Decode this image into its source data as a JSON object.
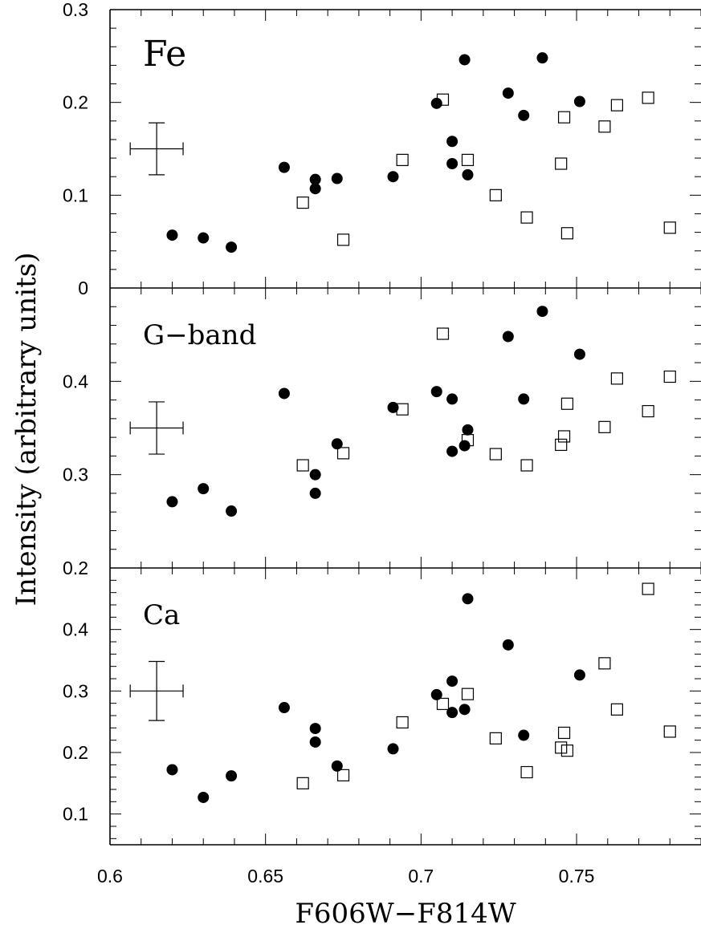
{
  "chart_data": {
    "type": "scatter",
    "xlabel": "F606W−F814W",
    "ylabel": "Intensity (arbitrary units)",
    "xlim": [
      0.6,
      0.79
    ],
    "x_ticks": [
      0.6,
      0.65,
      0.7,
      0.75
    ],
    "x_tick_labels": [
      "0.6",
      "0.65",
      "0.7",
      "0.75"
    ],
    "marker_styles": {
      "filled": "filled-circle",
      "open": "open-square"
    },
    "panels": [
      {
        "name": "Fe",
        "label": "Fe",
        "ylim": [
          0.0,
          0.3
        ],
        "yticks": [
          0.0,
          0.1,
          0.2,
          0.3
        ],
        "ytick_labels": [
          "0",
          "0.1",
          "0.2",
          "0.3"
        ],
        "error_bar": {
          "x": 0.615,
          "y": 0.15,
          "xerr": 0.0085,
          "yerr": 0.028
        },
        "filled": [
          [
            0.62,
            0.057
          ],
          [
            0.63,
            0.054
          ],
          [
            0.639,
            0.044
          ],
          [
            0.656,
            0.13
          ],
          [
            0.666,
            0.117
          ],
          [
            0.666,
            0.107
          ],
          [
            0.673,
            0.118
          ],
          [
            0.691,
            0.12
          ],
          [
            0.705,
            0.199
          ],
          [
            0.71,
            0.158
          ],
          [
            0.71,
            0.134
          ],
          [
            0.714,
            0.246
          ],
          [
            0.715,
            0.122
          ],
          [
            0.728,
            0.21
          ],
          [
            0.733,
            0.186
          ],
          [
            0.739,
            0.248
          ],
          [
            0.751,
            0.201
          ]
        ],
        "open": [
          [
            0.662,
            0.092
          ],
          [
            0.675,
            0.052
          ],
          [
            0.694,
            0.138
          ],
          [
            0.707,
            0.203
          ],
          [
            0.715,
            0.138
          ],
          [
            0.724,
            0.1
          ],
          [
            0.734,
            0.076
          ],
          [
            0.745,
            0.134
          ],
          [
            0.746,
            0.184
          ],
          [
            0.747,
            0.059
          ],
          [
            0.759,
            0.174
          ],
          [
            0.763,
            0.197
          ],
          [
            0.773,
            0.205
          ],
          [
            0.78,
            0.065
          ]
        ]
      },
      {
        "name": "G-band",
        "label": "G−band",
        "ylim": [
          0.2,
          0.5
        ],
        "yticks": [
          0.3,
          0.4
        ],
        "ytick_labels": [
          "0.3",
          "0.4"
        ],
        "error_bar": {
          "x": 0.615,
          "y": 0.35,
          "xerr": 0.0085,
          "yerr": 0.028
        },
        "filled": [
          [
            0.62,
            0.271
          ],
          [
            0.63,
            0.285
          ],
          [
            0.639,
            0.261
          ],
          [
            0.656,
            0.387
          ],
          [
            0.666,
            0.3
          ],
          [
            0.666,
            0.28
          ],
          [
            0.673,
            0.333
          ],
          [
            0.691,
            0.372
          ],
          [
            0.705,
            0.389
          ],
          [
            0.71,
            0.381
          ],
          [
            0.71,
            0.325
          ],
          [
            0.714,
            0.331
          ],
          [
            0.715,
            0.348
          ],
          [
            0.728,
            0.448
          ],
          [
            0.733,
            0.381
          ],
          [
            0.739,
            0.475
          ],
          [
            0.751,
            0.429
          ]
        ],
        "open": [
          [
            0.662,
            0.31
          ],
          [
            0.675,
            0.323
          ],
          [
            0.694,
            0.37
          ],
          [
            0.707,
            0.451
          ],
          [
            0.715,
            0.337
          ],
          [
            0.724,
            0.322
          ],
          [
            0.734,
            0.31
          ],
          [
            0.745,
            0.332
          ],
          [
            0.746,
            0.341
          ],
          [
            0.747,
            0.376
          ],
          [
            0.759,
            0.351
          ],
          [
            0.763,
            0.403
          ],
          [
            0.773,
            0.368
          ],
          [
            0.78,
            0.405
          ]
        ]
      },
      {
        "name": "Ca",
        "label": "Ca",
        "ylim": [
          0.05,
          0.5
        ],
        "yticks": [
          0.1,
          0.2,
          0.3,
          0.4
        ],
        "ytick_labels": [
          "0.1",
          "0.2",
          "0.3",
          "0.4"
        ],
        "top_label": "0.2",
        "error_bar": {
          "x": 0.615,
          "y": 0.3,
          "xerr": 0.0085,
          "yerr": 0.048
        },
        "filled": [
          [
            0.62,
            0.172
          ],
          [
            0.63,
            0.127
          ],
          [
            0.639,
            0.162
          ],
          [
            0.656,
            0.273
          ],
          [
            0.666,
            0.239
          ],
          [
            0.666,
            0.217
          ],
          [
            0.673,
            0.178
          ],
          [
            0.691,
            0.206
          ],
          [
            0.705,
            0.294
          ],
          [
            0.71,
            0.316
          ],
          [
            0.71,
            0.265
          ],
          [
            0.714,
            0.27
          ],
          [
            0.715,
            0.45
          ],
          [
            0.728,
            0.375
          ],
          [
            0.733,
            0.228
          ],
          [
            0.751,
            0.326
          ]
        ],
        "open": [
          [
            0.662,
            0.15
          ],
          [
            0.675,
            0.163
          ],
          [
            0.694,
            0.249
          ],
          [
            0.707,
            0.279
          ],
          [
            0.715,
            0.295
          ],
          [
            0.724,
            0.223
          ],
          [
            0.734,
            0.168
          ],
          [
            0.745,
            0.208
          ],
          [
            0.746,
            0.232
          ],
          [
            0.747,
            0.203
          ],
          [
            0.759,
            0.345
          ],
          [
            0.763,
            0.27
          ],
          [
            0.773,
            0.466
          ],
          [
            0.78,
            0.234
          ]
        ]
      }
    ]
  }
}
